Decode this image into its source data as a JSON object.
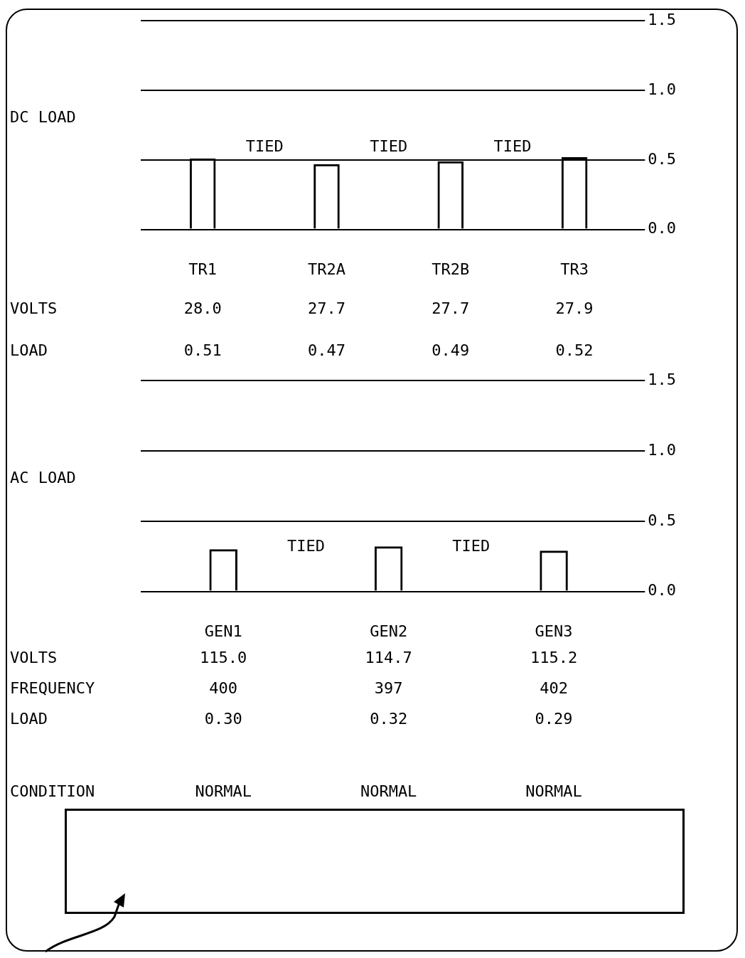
{
  "chart_data": [
    {
      "type": "bar",
      "ylabel": "DC LOAD",
      "categories": [
        "TR1",
        "TR2A",
        "TR2B",
        "TR3"
      ],
      "values": [
        0.51,
        0.47,
        0.49,
        0.52
      ],
      "color": "#000000",
      "ylim": [
        0,
        1.5
      ],
      "yticks": [
        {
          "value": 0,
          "label": "0.0"
        },
        {
          "value": 0.5,
          "label": "0.5"
        },
        {
          "value": 1,
          "label": "1.0"
        },
        1.5
      ],
      "grid": "y",
      "annotations": [
        "TIED",
        "TIED",
        "TIED",
        "VOLTS",
        "28.0",
        "27.7",
        "27.7",
        "27.9",
        "LOAD",
        "0.51",
        "0.47",
        "0.49",
        "0.52"
      ]
    },
    {
      "type": "bar",
      "ylabel": "AC LOAD",
      "categories": [
        "GEN1",
        "GEN2",
        "GEN3"
      ],
      "values": [
        0.3,
        0.32,
        0.29
      ],
      "color": "#000000",
      "ylim": [
        0,
        1.5
      ],
      "yticks": [
        {
          "value": 0,
          "label": "0.0"
        },
        {
          "value": 0.5,
          "label": "0.5"
        },
        {
          "value": 1,
          "label": "1.0"
        },
        1.5
      ],
      "grid": "y",
      "annotations": [
        "TIED",
        "TIED",
        "VOLTS",
        "115.0",
        "114.7",
        "115.2",
        "FREQUENCY",
        "400",
        "397",
        "402",
        "LOAD",
        "0.30",
        "0.32",
        "0.29",
        "CONDITION",
        "NORMAL",
        "NORMAL",
        "NORMAL"
      ]
    }
  ]
}
